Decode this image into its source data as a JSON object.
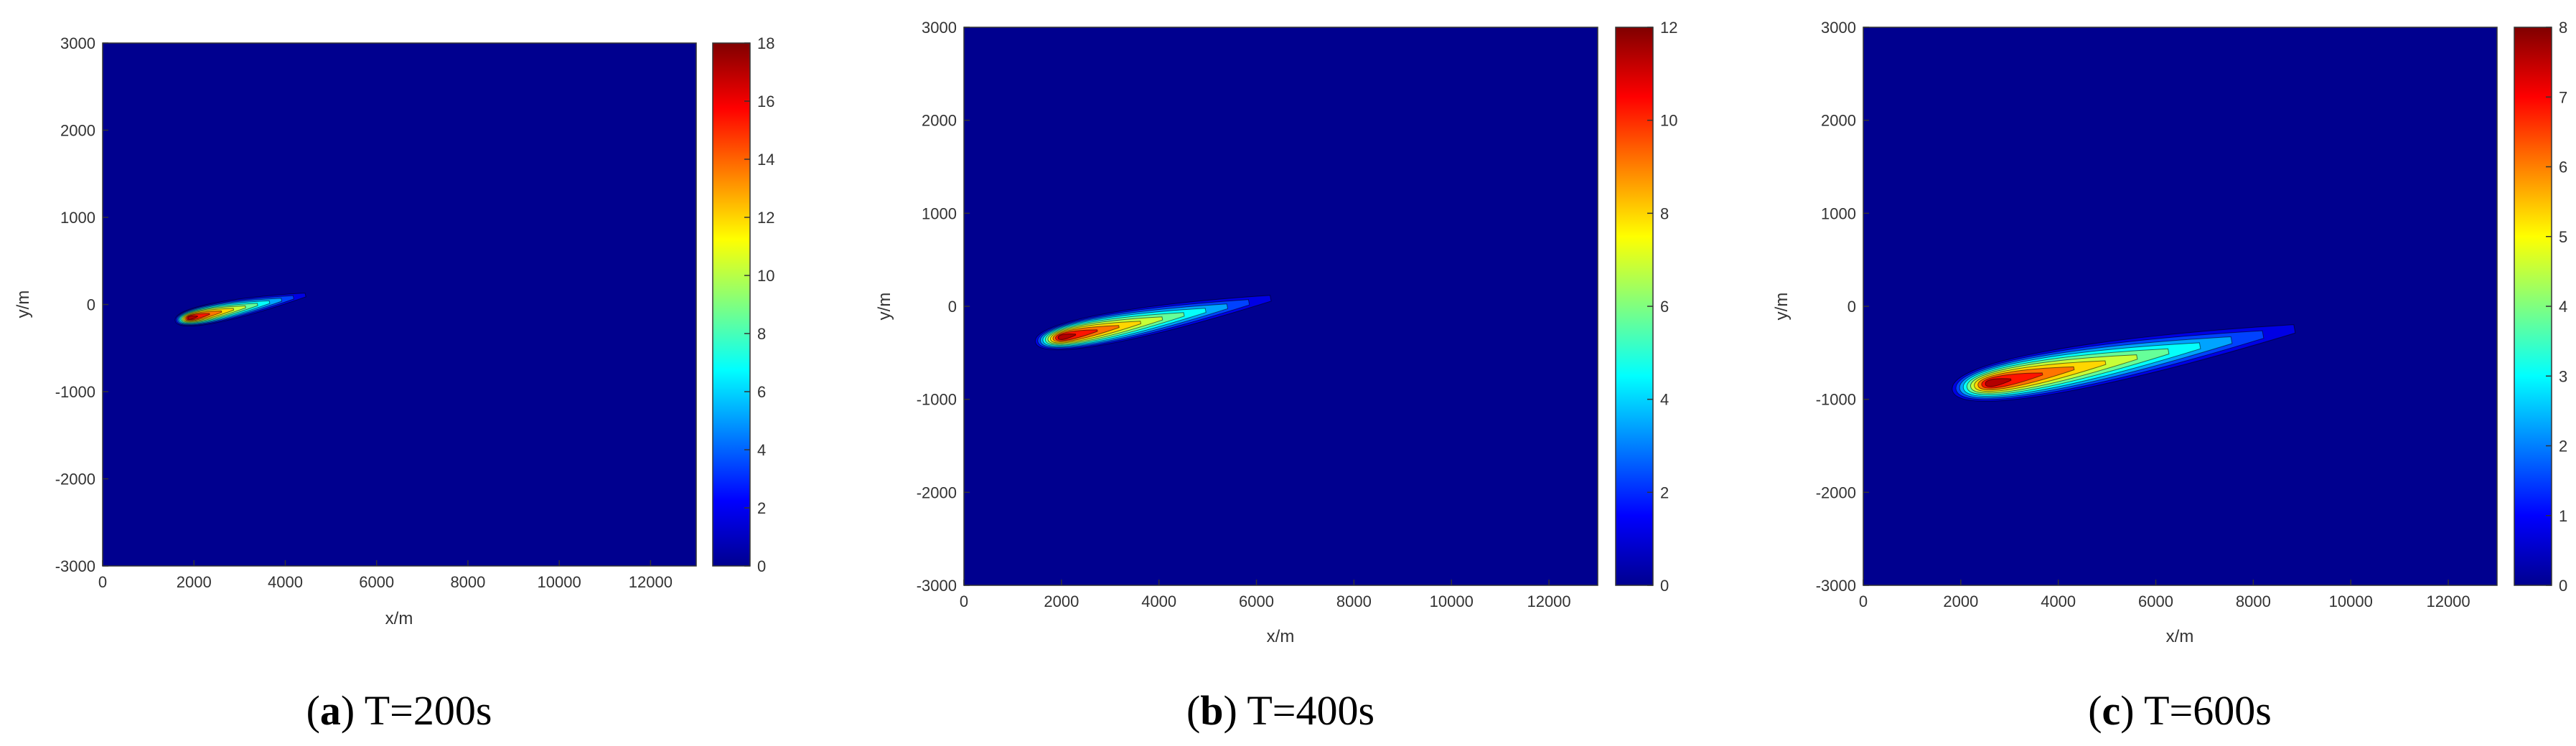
{
  "chart_data": [
    {
      "type": "heatmap",
      "caption_letter": "a",
      "caption_text": "T=200s",
      "xlabel": "x/m",
      "ylabel": "y/m",
      "xlim": [
        0,
        13000
      ],
      "ylim": [
        -3000,
        3000
      ],
      "xticks": [
        0,
        2000,
        4000,
        6000,
        8000,
        10000,
        12000
      ],
      "yticks": [
        -3000,
        -2000,
        -1000,
        0,
        1000,
        2000,
        3000
      ],
      "colorbar_range": [
        0,
        18
      ],
      "colorbar_ticks": [
        0,
        2,
        4,
        6,
        8,
        10,
        12,
        14,
        16,
        18
      ],
      "plume": {
        "source": [
          500,
          -300
        ],
        "peak": [
          1900,
          -150
        ],
        "peak_value": 18,
        "tail_end": [
          3100,
          -30
        ],
        "half_width": 160
      }
    },
    {
      "type": "heatmap",
      "caption_letter": "b",
      "caption_text": "T=400s",
      "xlabel": "x/m",
      "ylabel": "y/m",
      "xlim": [
        0,
        13000
      ],
      "ylim": [
        -3000,
        3000
      ],
      "xticks": [
        0,
        2000,
        4000,
        6000,
        8000,
        10000,
        12000
      ],
      "yticks": [
        -3000,
        -2000,
        -1000,
        0,
        1000,
        2000,
        3000
      ],
      "colorbar_range": [
        0,
        12
      ],
      "colorbar_ticks": [
        0,
        2,
        4,
        6,
        8,
        10,
        12
      ],
      "plume": {
        "source": [
          800,
          -450
        ],
        "peak": [
          2000,
          -360
        ],
        "peak_value": 12,
        "tail_end": [
          5200,
          -20
        ],
        "half_width": 230
      }
    },
    {
      "type": "heatmap",
      "caption_letter": "c",
      "caption_text": "T=600s",
      "xlabel": "x/m",
      "ylabel": "y/m",
      "xlim": [
        0,
        13000
      ],
      "ylim": [
        -3000,
        3000
      ],
      "xticks": [
        0,
        2000,
        4000,
        6000,
        8000,
        10000,
        12000
      ],
      "yticks": [
        -3000,
        -2000,
        -1000,
        0,
        1000,
        2000,
        3000
      ],
      "colorbar_range": [
        0,
        8
      ],
      "colorbar_ticks": [
        0,
        1,
        2,
        3,
        4,
        5,
        6,
        7,
        8
      ],
      "plume": {
        "source": [
          1300,
          -950
        ],
        "peak": [
          2600,
          -850
        ],
        "peak_value": 8,
        "tail_end": [
          7700,
          -350
        ],
        "half_width": 330
      }
    }
  ],
  "colors": {
    "background_field": "#00008f",
    "jet": [
      "#00008f",
      "#0000ff",
      "#00ffff",
      "#ffff00",
      "#ff0000",
      "#800000"
    ]
  }
}
